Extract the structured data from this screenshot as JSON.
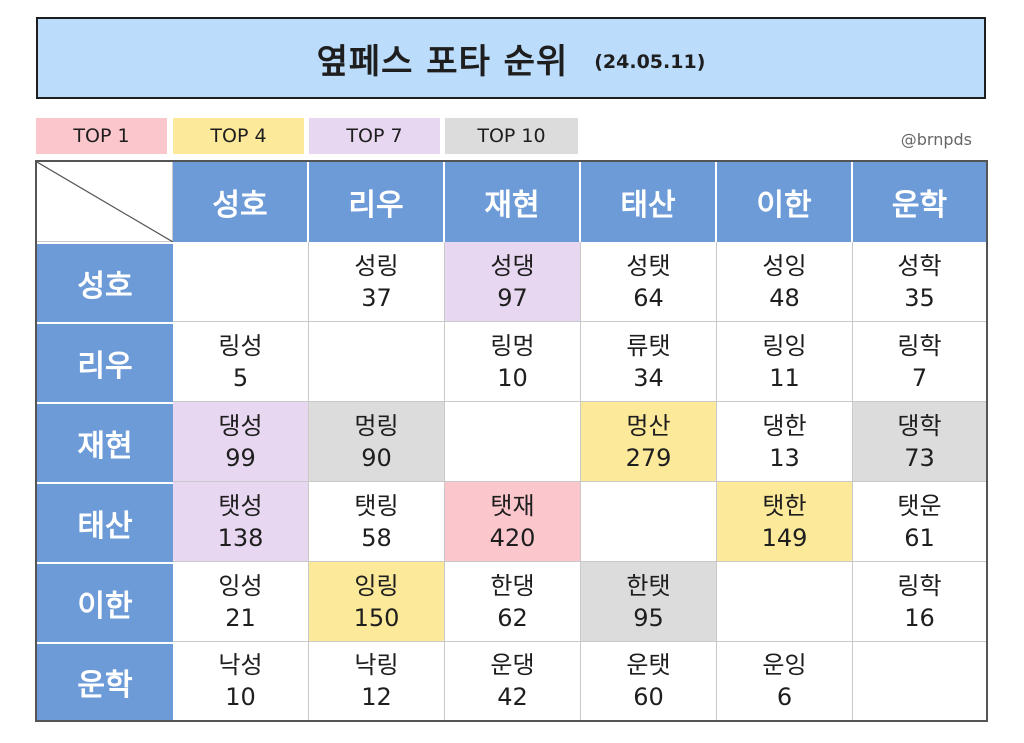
{
  "title": "옆페스 포타 순위",
  "date": "(24.05.11)",
  "credit": "@brnpds",
  "legend": [
    {
      "label": "TOP 1",
      "color": "#fbc6cc"
    },
    {
      "label": "TOP 4",
      "color": "#fce99a"
    },
    {
      "label": "TOP 7",
      "color": "#e8d7f1"
    },
    {
      "label": "TOP 10",
      "color": "#dcdcdc"
    }
  ],
  "columns": [
    "성호",
    "리우",
    "재현",
    "태산",
    "이한",
    "운학"
  ],
  "rows": [
    {
      "name": "성호",
      "cells": [
        null,
        {
          "pair": "성링",
          "value": "37",
          "tier": ""
        },
        {
          "pair": "성댕",
          "value": "97",
          "tier": "top7"
        },
        {
          "pair": "성탯",
          "value": "64",
          "tier": ""
        },
        {
          "pair": "성잉",
          "value": "48",
          "tier": ""
        },
        {
          "pair": "성학",
          "value": "35",
          "tier": ""
        }
      ]
    },
    {
      "name": "리우",
      "cells": [
        {
          "pair": "링성",
          "value": "5",
          "tier": ""
        },
        null,
        {
          "pair": "링멍",
          "value": "10",
          "tier": ""
        },
        {
          "pair": "류탯",
          "value": "34",
          "tier": ""
        },
        {
          "pair": "링잉",
          "value": "11",
          "tier": ""
        },
        {
          "pair": "링학",
          "value": "7",
          "tier": ""
        }
      ]
    },
    {
      "name": "재현",
      "cells": [
        {
          "pair": "댕성",
          "value": "99",
          "tier": "top7"
        },
        {
          "pair": "멍링",
          "value": "90",
          "tier": "top10"
        },
        null,
        {
          "pair": "멍산",
          "value": "279",
          "tier": "top4"
        },
        {
          "pair": "댕한",
          "value": "13",
          "tier": ""
        },
        {
          "pair": "댕학",
          "value": "73",
          "tier": "top10"
        }
      ]
    },
    {
      "name": "태산",
      "cells": [
        {
          "pair": "탯성",
          "value": "138",
          "tier": "top7"
        },
        {
          "pair": "탯링",
          "value": "58",
          "tier": ""
        },
        {
          "pair": "탯재",
          "value": "420",
          "tier": "top1"
        },
        null,
        {
          "pair": "탯한",
          "value": "149",
          "tier": "top4"
        },
        {
          "pair": "탯운",
          "value": "61",
          "tier": ""
        }
      ]
    },
    {
      "name": "이한",
      "cells": [
        {
          "pair": "잉성",
          "value": "21",
          "tier": ""
        },
        {
          "pair": "잉링",
          "value": "150",
          "tier": "top4"
        },
        {
          "pair": "한댕",
          "value": "62",
          "tier": ""
        },
        {
          "pair": "한탯",
          "value": "95",
          "tier": "top10"
        },
        null,
        {
          "pair": "링학",
          "value": "16",
          "tier": ""
        }
      ]
    },
    {
      "name": "운학",
      "cells": [
        {
          "pair": "낙성",
          "value": "10",
          "tier": ""
        },
        {
          "pair": "낙링",
          "value": "12",
          "tier": ""
        },
        {
          "pair": "운댕",
          "value": "42",
          "tier": ""
        },
        {
          "pair": "운탯",
          "value": "60",
          "tier": ""
        },
        {
          "pair": "운잉",
          "value": "6",
          "tier": ""
        },
        null
      ]
    }
  ],
  "tier_colors": {
    "top1": "#fbc6cc",
    "top4": "#fce99a",
    "top7": "#e8d7f1",
    "top10": "#dcdcdc"
  }
}
